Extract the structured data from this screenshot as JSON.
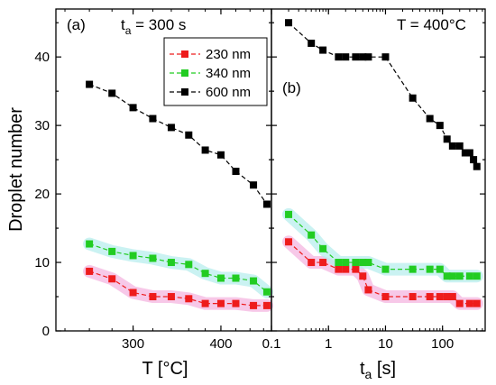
{
  "figure": {
    "ylabel": "Droplet number",
    "yticks": [
      0,
      10,
      20,
      30,
      40
    ]
  },
  "chart_data": [
    {
      "type": "line",
      "panel_label": "(a)",
      "annotation": {
        "prefix": "t",
        "subscript": "a",
        "suffix": " = 300 s"
      },
      "xlabel": "T [°C]",
      "xscale": "log",
      "xlim": [
        233,
        472
      ],
      "xticks": [
        300,
        400
      ],
      "ylim": [
        0,
        47
      ],
      "legend": {
        "placement": "top-right",
        "entries": [
          {
            "label": "230 nm",
            "color": "#ee1c1c"
          },
          {
            "label": "340 nm",
            "color": "#22cc22"
          },
          {
            "label": "600 nm",
            "color": "#000000"
          }
        ]
      },
      "series": [
        {
          "name": "230 nm",
          "color": "#ee1c1c",
          "band": "#f4b6e0",
          "x": [
            260,
            280,
            300,
            320,
            340,
            360,
            380,
            400,
            420,
            445,
            465
          ],
          "y": [
            8.7,
            7.6,
            5.6,
            5.0,
            5.0,
            4.7,
            4.0,
            4.0,
            4.0,
            3.7,
            3.7
          ]
        },
        {
          "name": "340 nm",
          "color": "#22cc22",
          "band": "#b8eeee",
          "x": [
            260,
            280,
            300,
            320,
            340,
            360,
            380,
            400,
            420,
            445,
            465
          ],
          "y": [
            12.7,
            11.6,
            11.0,
            10.6,
            10.0,
            9.7,
            8.4,
            7.7,
            7.7,
            7.3,
            5.7
          ]
        },
        {
          "name": "600 nm",
          "color": "#000000",
          "x": [
            260,
            280,
            300,
            320,
            340,
            360,
            380,
            400,
            420,
            445,
            465
          ],
          "y": [
            36.0,
            34.7,
            32.6,
            31.0,
            29.7,
            28.6,
            26.4,
            25.7,
            23.3,
            21.3,
            18.5
          ]
        }
      ]
    },
    {
      "type": "line",
      "panel_label": "(b)",
      "annotation": {
        "prefix": "T = 400°C",
        "subscript": "",
        "suffix": ""
      },
      "xlabel_prefix": "t",
      "xlabel_subscript": "a",
      "xlabel_suffix": " [s]",
      "xscale": "log",
      "xlim": [
        0.1,
        560
      ],
      "xticks": [
        0.1,
        1,
        10,
        100
      ],
      "ylim": [
        0,
        47
      ],
      "series": [
        {
          "name": "230 nm",
          "color": "#ee1c1c",
          "band": "#f4b6e0",
          "x": [
            0.2,
            0.5,
            0.8,
            1.5,
            2,
            3,
            4,
            5,
            10,
            30,
            60,
            90,
            120,
            150,
            200,
            300,
            400
          ],
          "y": [
            13,
            10,
            10,
            9,
            9,
            9,
            8,
            6,
            5,
            5,
            5,
            5,
            5,
            5,
            4,
            4,
            4
          ]
        },
        {
          "name": "340 nm",
          "color": "#22cc22",
          "band": "#b8eeee",
          "x": [
            0.2,
            0.5,
            0.8,
            1.5,
            2,
            3,
            4,
            5,
            10,
            30,
            60,
            90,
            120,
            150,
            200,
            300,
            400
          ],
          "y": [
            17,
            14,
            12,
            10,
            10,
            10,
            10,
            10,
            9,
            9,
            9,
            9,
            8,
            8,
            8,
            8,
            8
          ]
        },
        {
          "name": "600 nm",
          "color": "#000000",
          "x": [
            0.2,
            0.5,
            0.8,
            1.5,
            2,
            3,
            4,
            5,
            10,
            30,
            60,
            90,
            120,
            150,
            200,
            250,
            300,
            350,
            400
          ],
          "y": [
            45,
            42,
            41,
            40,
            40,
            40,
            40,
            40,
            40,
            34,
            31,
            30,
            28,
            27,
            27,
            26,
            26,
            25,
            24
          ]
        }
      ]
    }
  ]
}
